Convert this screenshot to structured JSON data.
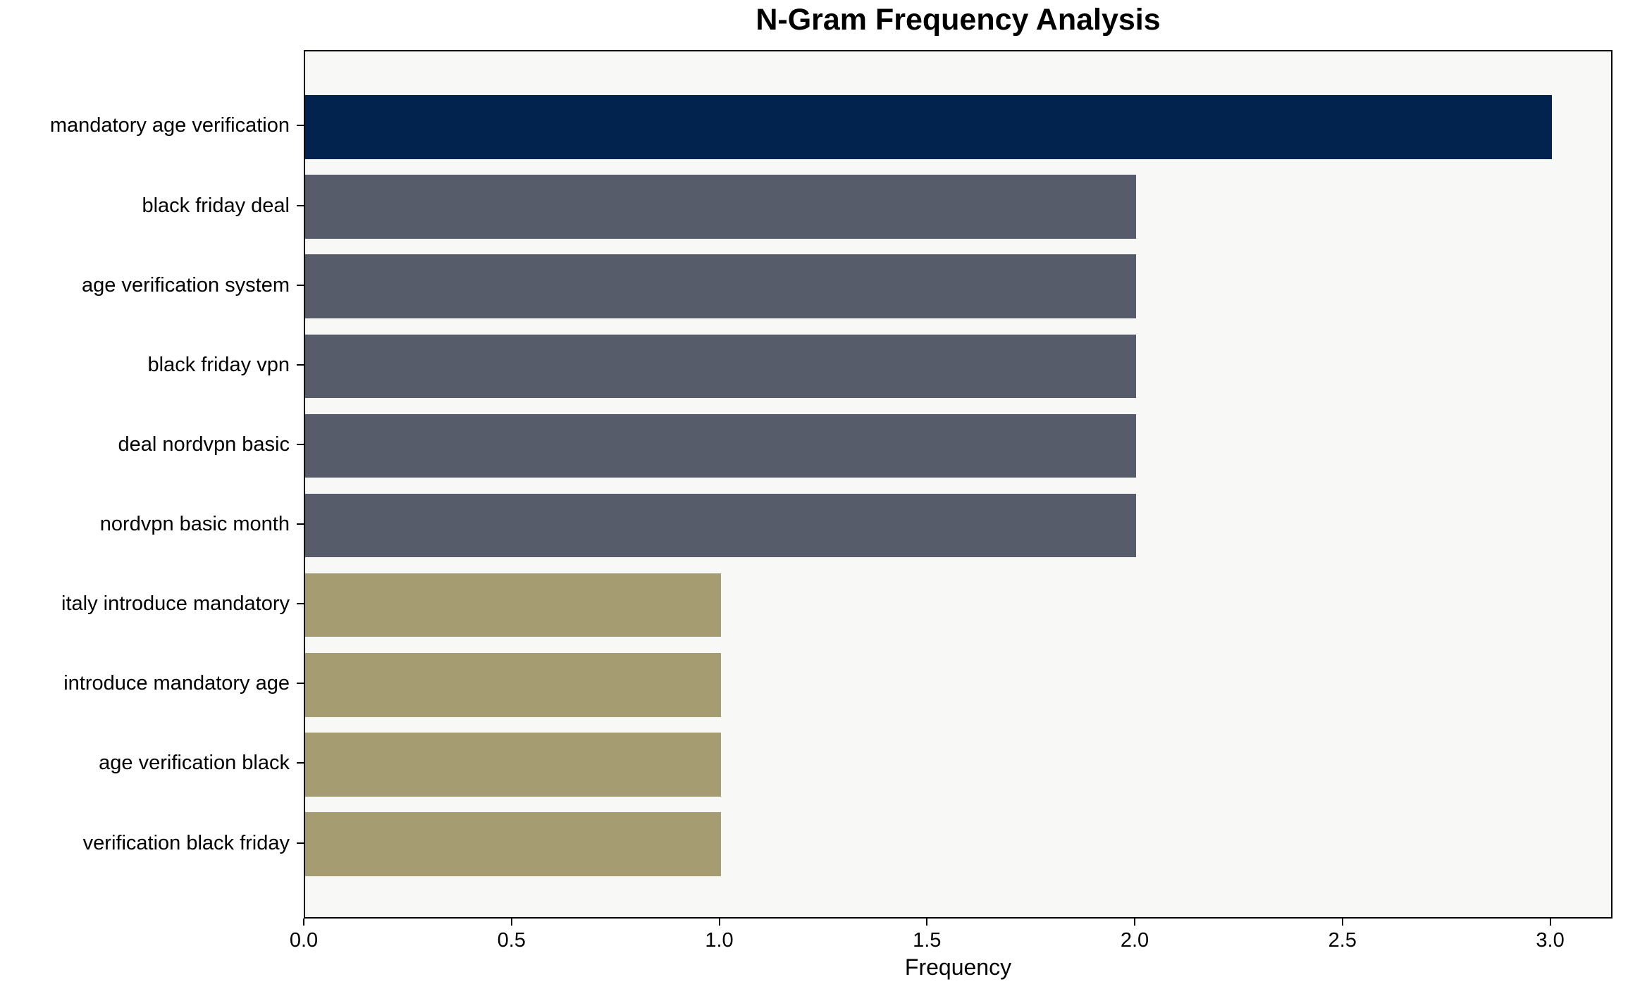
{
  "title": "N-Gram Frequency Analysis",
  "chart_data": {
    "type": "bar",
    "orientation": "horizontal",
    "title": "N-Gram Frequency Analysis",
    "xlabel": "Frequency",
    "ylabel": "",
    "categories": [
      "mandatory age verification",
      "black friday deal",
      "age verification system",
      "black friday vpn",
      "deal nordvpn basic",
      "nordvpn basic month",
      "italy introduce mandatory",
      "introduce mandatory age",
      "age verification black",
      "verification black friday"
    ],
    "values": [
      3,
      2,
      2,
      2,
      2,
      2,
      1,
      1,
      1,
      1
    ],
    "bar_colors": [
      "#02234D",
      "#575C6A",
      "#575C6A",
      "#575C6A",
      "#575C6A",
      "#575C6A",
      "#A59C72",
      "#A59C72",
      "#A59C72",
      "#A59C72"
    ],
    "xlim": [
      0,
      3.15
    ],
    "xticks": {
      "values": [
        0,
        0.5,
        1,
        1.5,
        2,
        2.5,
        3
      ],
      "labels": [
        "0.0",
        "0.5",
        "1.0",
        "1.5",
        "2.0",
        "2.5",
        "3.0"
      ]
    },
    "grid": false,
    "legend_position": "none",
    "plot_background": "#F8F8F7",
    "figure_background": "#FFFFFF",
    "frame_color": "#000000",
    "bar_height_fraction": 0.8
  }
}
